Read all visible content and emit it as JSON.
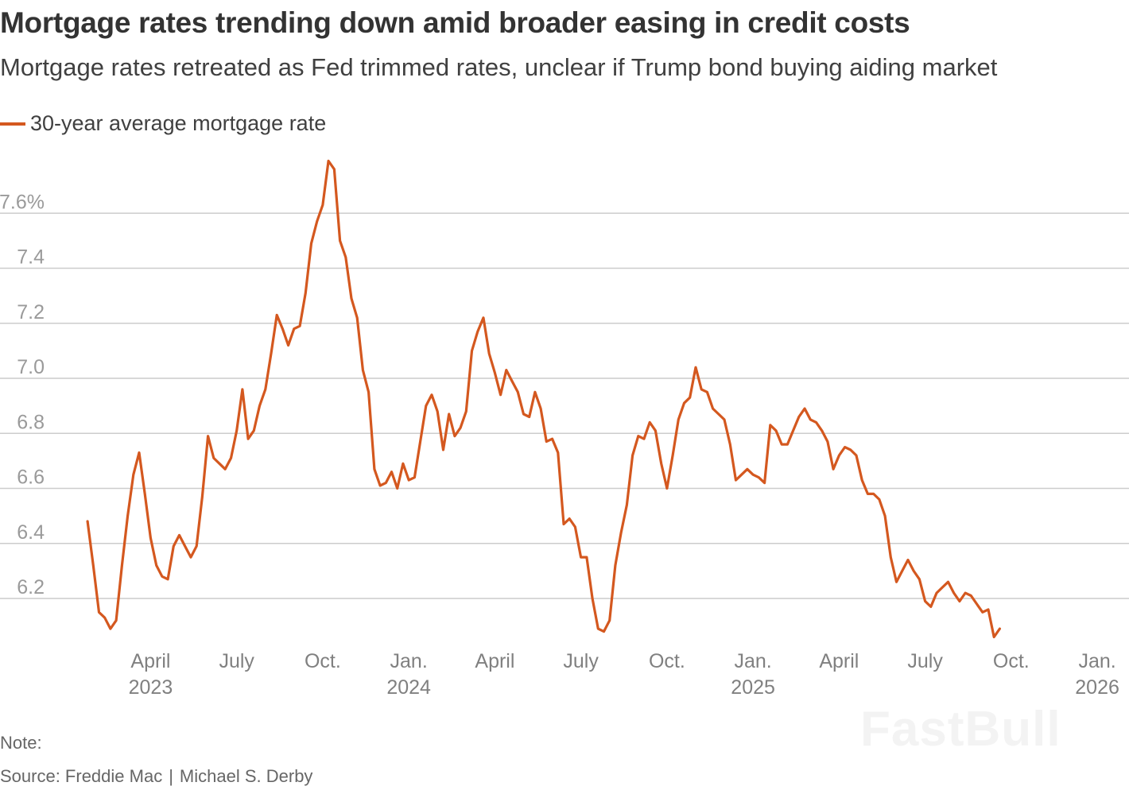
{
  "header": {
    "title": "Mortgage rates trending down amid broader easing in credit costs",
    "subtitle": "Mortgage rates retreated as Fed trimmed rates, unclear if Trump bond buying aiding market"
  },
  "legend": {
    "label": "30-year average mortgage rate",
    "color": "#d4581f"
  },
  "footer": {
    "note": "Note:",
    "source": "Source: Freddie Mac",
    "credit": "Michael S. Derby",
    "separator": "|"
  },
  "watermark": "FastBull",
  "chart_data": {
    "type": "line",
    "title": "Mortgage rates trending down amid broader easing in credit costs",
    "xlabel": "",
    "ylabel": "",
    "ylim": [
      6.0,
      7.85
    ],
    "grid": true,
    "legend_position": "top-left",
    "y_ticks": [
      {
        "value": 6.2,
        "label": "6.2"
      },
      {
        "value": 6.4,
        "label": "6.4"
      },
      {
        "value": 6.6,
        "label": "6.6"
      },
      {
        "value": 6.8,
        "label": "6.8"
      },
      {
        "value": 7.0,
        "label": "7.0"
      },
      {
        "value": 7.2,
        "label": "7.2"
      },
      {
        "value": 7.4,
        "label": "7.4"
      },
      {
        "value": 7.6,
        "label": "7.6%"
      }
    ],
    "x_ticks": [
      {
        "month_index": 3,
        "label": "April",
        "year": "2023"
      },
      {
        "month_index": 6,
        "label": "July",
        "year": ""
      },
      {
        "month_index": 9,
        "label": "Oct.",
        "year": ""
      },
      {
        "month_index": 12,
        "label": "Jan.",
        "year": "2024"
      },
      {
        "month_index": 15,
        "label": "April",
        "year": ""
      },
      {
        "month_index": 18,
        "label": "July",
        "year": ""
      },
      {
        "month_index": 21,
        "label": "Oct.",
        "year": ""
      },
      {
        "month_index": 24,
        "label": "Jan.",
        "year": "2025"
      },
      {
        "month_index": 27,
        "label": "April",
        "year": ""
      },
      {
        "month_index": 30,
        "label": "July",
        "year": ""
      },
      {
        "month_index": 33,
        "label": "Oct.",
        "year": ""
      },
      {
        "month_index": 36,
        "label": "Jan.",
        "year": "2026"
      }
    ],
    "series": [
      {
        "name": "30-year average mortgage rate",
        "color": "#d4581f",
        "x_unit": "months since Jan. 2023",
        "points": [
          [
            0.8,
            6.48
          ],
          [
            1.0,
            6.32
          ],
          [
            1.2,
            6.15
          ],
          [
            1.4,
            6.13
          ],
          [
            1.6,
            6.09
          ],
          [
            1.8,
            6.12
          ],
          [
            2.0,
            6.32
          ],
          [
            2.2,
            6.5
          ],
          [
            2.4,
            6.65
          ],
          [
            2.6,
            6.73
          ],
          [
            2.8,
            6.58
          ],
          [
            3.0,
            6.42
          ],
          [
            3.2,
            6.32
          ],
          [
            3.4,
            6.28
          ],
          [
            3.6,
            6.27
          ],
          [
            3.8,
            6.39
          ],
          [
            4.0,
            6.43
          ],
          [
            4.2,
            6.39
          ],
          [
            4.4,
            6.35
          ],
          [
            4.6,
            6.39
          ],
          [
            4.8,
            6.57
          ],
          [
            5.0,
            6.79
          ],
          [
            5.2,
            6.71
          ],
          [
            5.4,
            6.69
          ],
          [
            5.6,
            6.67
          ],
          [
            5.8,
            6.71
          ],
          [
            6.0,
            6.81
          ],
          [
            6.2,
            6.96
          ],
          [
            6.4,
            6.78
          ],
          [
            6.6,
            6.81
          ],
          [
            6.8,
            6.9
          ],
          [
            7.0,
            6.96
          ],
          [
            7.2,
            7.09
          ],
          [
            7.4,
            7.23
          ],
          [
            7.6,
            7.18
          ],
          [
            7.8,
            7.12
          ],
          [
            8.0,
            7.18
          ],
          [
            8.2,
            7.19
          ],
          [
            8.4,
            7.31
          ],
          [
            8.6,
            7.49
          ],
          [
            8.8,
            7.57
          ],
          [
            9.0,
            7.63
          ],
          [
            9.2,
            7.79
          ],
          [
            9.4,
            7.76
          ],
          [
            9.6,
            7.5
          ],
          [
            9.8,
            7.44
          ],
          [
            10.0,
            7.29
          ],
          [
            10.2,
            7.22
          ],
          [
            10.4,
            7.03
          ],
          [
            10.6,
            6.95
          ],
          [
            10.8,
            6.67
          ],
          [
            11.0,
            6.61
          ],
          [
            11.2,
            6.62
          ],
          [
            11.4,
            6.66
          ],
          [
            11.6,
            6.6
          ],
          [
            11.8,
            6.69
          ],
          [
            12.0,
            6.63
          ],
          [
            12.2,
            6.64
          ],
          [
            12.4,
            6.77
          ],
          [
            12.6,
            6.9
          ],
          [
            12.8,
            6.94
          ],
          [
            13.0,
            6.88
          ],
          [
            13.2,
            6.74
          ],
          [
            13.4,
            6.87
          ],
          [
            13.6,
            6.79
          ],
          [
            13.8,
            6.82
          ],
          [
            14.0,
            6.88
          ],
          [
            14.2,
            7.1
          ],
          [
            14.4,
            7.17
          ],
          [
            14.6,
            7.22
          ],
          [
            14.8,
            7.09
          ],
          [
            15.0,
            7.02
          ],
          [
            15.2,
            6.94
          ],
          [
            15.4,
            7.03
          ],
          [
            15.6,
            6.99
          ],
          [
            15.8,
            6.95
          ],
          [
            16.0,
            6.87
          ],
          [
            16.2,
            6.86
          ],
          [
            16.4,
            6.95
          ],
          [
            16.6,
            6.89
          ],
          [
            16.8,
            6.77
          ],
          [
            17.0,
            6.78
          ],
          [
            17.2,
            6.73
          ],
          [
            17.4,
            6.47
          ],
          [
            17.6,
            6.49
          ],
          [
            17.8,
            6.46
          ],
          [
            18.0,
            6.35
          ],
          [
            18.2,
            6.35
          ],
          [
            18.4,
            6.2
          ],
          [
            18.6,
            6.09
          ],
          [
            18.8,
            6.08
          ],
          [
            19.0,
            6.12
          ],
          [
            19.2,
            6.32
          ],
          [
            19.4,
            6.44
          ],
          [
            19.6,
            6.54
          ],
          [
            19.8,
            6.72
          ],
          [
            20.0,
            6.79
          ],
          [
            20.2,
            6.78
          ],
          [
            20.4,
            6.84
          ],
          [
            20.6,
            6.81
          ],
          [
            20.8,
            6.69
          ],
          [
            21.0,
            6.6
          ],
          [
            21.2,
            6.72
          ],
          [
            21.4,
            6.85
          ],
          [
            21.6,
            6.91
          ],
          [
            21.8,
            6.93
          ],
          [
            22.0,
            7.04
          ],
          [
            22.2,
            6.96
          ],
          [
            22.4,
            6.95
          ],
          [
            22.6,
            6.89
          ],
          [
            22.8,
            6.87
          ],
          [
            23.0,
            6.85
          ],
          [
            23.2,
            6.76
          ],
          [
            23.4,
            6.63
          ],
          [
            23.6,
            6.65
          ],
          [
            23.8,
            6.67
          ],
          [
            24.0,
            6.65
          ],
          [
            24.2,
            6.64
          ],
          [
            24.4,
            6.62
          ],
          [
            24.6,
            6.83
          ],
          [
            24.8,
            6.81
          ],
          [
            25.0,
            6.76
          ],
          [
            25.2,
            6.76
          ],
          [
            25.4,
            6.81
          ],
          [
            25.6,
            6.86
          ],
          [
            25.8,
            6.89
          ],
          [
            26.0,
            6.85
          ],
          [
            26.2,
            6.84
          ],
          [
            26.4,
            6.81
          ],
          [
            26.6,
            6.77
          ],
          [
            26.8,
            6.67
          ],
          [
            27.0,
            6.72
          ],
          [
            27.2,
            6.75
          ],
          [
            27.4,
            6.74
          ],
          [
            27.6,
            6.72
          ],
          [
            27.8,
            6.63
          ],
          [
            28.0,
            6.58
          ],
          [
            28.2,
            6.58
          ],
          [
            28.4,
            6.56
          ],
          [
            28.6,
            6.5
          ],
          [
            28.8,
            6.35
          ],
          [
            29.0,
            6.26
          ],
          [
            29.2,
            6.3
          ],
          [
            29.4,
            6.34
          ],
          [
            29.6,
            6.3
          ],
          [
            29.8,
            6.27
          ],
          [
            30.0,
            6.19
          ],
          [
            30.2,
            6.17
          ],
          [
            30.4,
            6.22
          ],
          [
            30.6,
            6.24
          ],
          [
            30.8,
            6.26
          ],
          [
            31.0,
            6.22
          ],
          [
            31.2,
            6.19
          ],
          [
            31.4,
            6.22
          ],
          [
            31.6,
            6.21
          ],
          [
            31.8,
            6.18
          ],
          [
            32.0,
            6.15
          ],
          [
            32.2,
            6.16
          ],
          [
            32.4,
            6.06
          ],
          [
            32.6,
            6.09
          ]
        ]
      }
    ]
  }
}
